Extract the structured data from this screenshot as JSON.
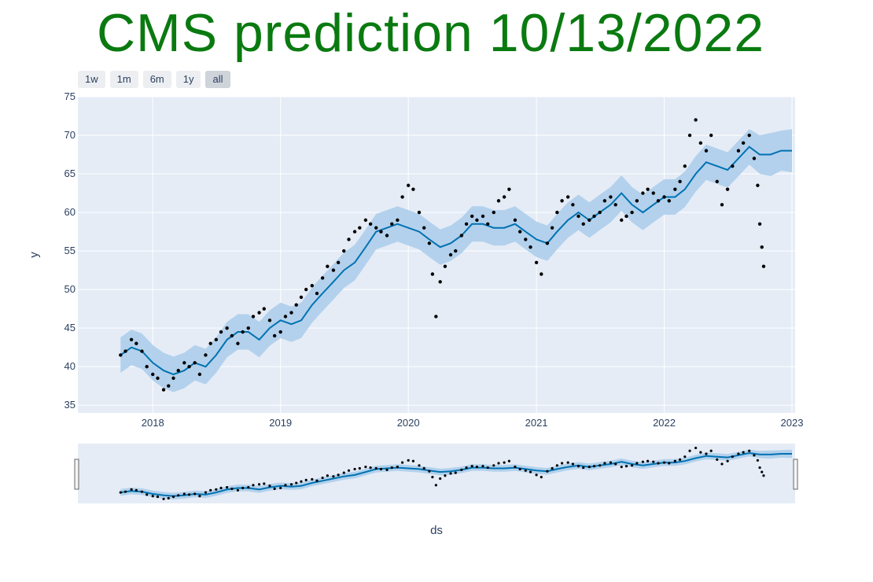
{
  "title": "CMS prediction 10/13/2022",
  "range_buttons": [
    {
      "label": "1w",
      "active": false
    },
    {
      "label": "1m",
      "active": false
    },
    {
      "label": "6m",
      "active": false
    },
    {
      "label": "1y",
      "active": false
    },
    {
      "label": "all",
      "active": true
    }
  ],
  "colors": {
    "title": "#0a7a10",
    "plot_bg": "#e5ecf6",
    "forecast_line": "#0072b2",
    "uncertainty_band": "#b3d1ec",
    "observed_points": "#000000",
    "grid": "#ffffff"
  },
  "chart_data": {
    "type": "line",
    "title": "CMS prediction 10/13/2022",
    "xlabel": "ds",
    "ylabel": "y",
    "xlim": [
      "2017-06-01",
      "2023-01-10"
    ],
    "ylim": [
      34,
      75
    ],
    "x_ticks": [
      "2018",
      "2019",
      "2020",
      "2021",
      "2022",
      "2023"
    ],
    "y_ticks": [
      35,
      40,
      45,
      50,
      55,
      60,
      65,
      70,
      75
    ],
    "grid": true,
    "legend": "none",
    "range_slider": true,
    "series": [
      {
        "kind": "forecast",
        "x": [
          "2017-10-01",
          "2017-11-01",
          "2017-12-01",
          "2018-01-01",
          "2018-02-01",
          "2018-03-01",
          "2018-04-01",
          "2018-05-01",
          "2018-06-01",
          "2018-07-01",
          "2018-08-01",
          "2018-09-01",
          "2018-10-01",
          "2018-11-01",
          "2018-12-01",
          "2019-01-01",
          "2019-02-01",
          "2019-03-01",
          "2019-04-01",
          "2019-05-01",
          "2019-06-01",
          "2019-07-01",
          "2019-08-01",
          "2019-09-01",
          "2019-10-01",
          "2019-11-01",
          "2019-12-01",
          "2020-01-01",
          "2020-02-01",
          "2020-03-01",
          "2020-04-01",
          "2020-05-01",
          "2020-06-01",
          "2020-07-01",
          "2020-08-01",
          "2020-09-01",
          "2020-10-01",
          "2020-11-01",
          "2020-12-01",
          "2021-01-01",
          "2021-02-01",
          "2021-03-01",
          "2021-04-01",
          "2021-05-01",
          "2021-06-01",
          "2021-07-01",
          "2021-08-01",
          "2021-09-01",
          "2021-10-01",
          "2021-11-01",
          "2021-12-01",
          "2022-01-01",
          "2022-02-01",
          "2022-03-01",
          "2022-04-01",
          "2022-05-01",
          "2022-06-01",
          "2022-07-01",
          "2022-08-01",
          "2022-09-01",
          "2022-10-01",
          "2022-11-01",
          "2022-12-01",
          "2023-01-01"
        ],
        "values": [
          41.5,
          42.5,
          42.0,
          40.5,
          39.5,
          39.0,
          39.5,
          40.5,
          40.0,
          41.5,
          43.5,
          44.5,
          44.5,
          43.5,
          45.0,
          46.0,
          45.5,
          46.0,
          48.0,
          49.5,
          51.0,
          52.5,
          53.5,
          55.5,
          57.5,
          58.0,
          58.5,
          58.0,
          57.5,
          56.5,
          55.5,
          56.0,
          57.0,
          58.5,
          58.5,
          58.0,
          58.0,
          58.5,
          57.5,
          56.5,
          56.0,
          57.5,
          59.0,
          60.0,
          59.0,
          60.0,
          61.0,
          62.5,
          61.0,
          60.0,
          61.0,
          62.0,
          62.0,
          63.0,
          65.0,
          66.5,
          66.0,
          65.5,
          67.0,
          68.5,
          67.5,
          67.5,
          68.0,
          68.0
        ],
        "upper": [
          43.8,
          44.8,
          44.3,
          42.8,
          41.8,
          41.3,
          41.8,
          42.8,
          42.3,
          43.8,
          45.8,
          46.8,
          46.8,
          45.8,
          47.3,
          48.3,
          47.8,
          48.3,
          50.3,
          51.8,
          53.3,
          54.8,
          55.8,
          57.8,
          59.8,
          60.3,
          60.8,
          60.3,
          59.8,
          58.8,
          57.8,
          58.3,
          59.3,
          60.8,
          60.8,
          60.3,
          60.3,
          60.8,
          59.8,
          58.8,
          58.3,
          59.8,
          61.3,
          62.3,
          61.3,
          62.3,
          63.3,
          64.8,
          63.3,
          62.3,
          63.3,
          64.3,
          64.3,
          65.3,
          67.3,
          68.8,
          68.3,
          67.8,
          69.3,
          70.8,
          70.0,
          70.3,
          70.6,
          70.8
        ],
        "lower": [
          39.2,
          40.2,
          39.7,
          38.2,
          37.2,
          36.7,
          37.2,
          38.2,
          37.7,
          39.2,
          41.2,
          42.2,
          42.2,
          41.2,
          42.7,
          43.7,
          43.2,
          43.7,
          45.7,
          47.2,
          48.7,
          50.2,
          51.2,
          53.2,
          55.2,
          55.7,
          56.2,
          55.7,
          55.2,
          54.2,
          53.2,
          53.7,
          54.7,
          56.2,
          56.2,
          55.7,
          55.7,
          56.2,
          55.2,
          54.2,
          53.7,
          55.2,
          56.7,
          57.7,
          56.7,
          57.7,
          58.7,
          60.2,
          58.7,
          57.7,
          58.7,
          59.7,
          59.7,
          60.7,
          62.7,
          64.2,
          63.7,
          63.2,
          64.7,
          66.2,
          65.0,
          64.7,
          65.4,
          65.2
        ]
      },
      {
        "kind": "observed",
        "x": [
          "2017-10-01",
          "2017-10-15",
          "2017-11-01",
          "2017-11-15",
          "2017-12-01",
          "2017-12-15",
          "2018-01-01",
          "2018-01-15",
          "2018-02-01",
          "2018-02-15",
          "2018-03-01",
          "2018-03-15",
          "2018-04-01",
          "2018-04-15",
          "2018-05-01",
          "2018-05-15",
          "2018-06-01",
          "2018-06-15",
          "2018-07-01",
          "2018-07-15",
          "2018-08-01",
          "2018-08-15",
          "2018-09-01",
          "2018-09-15",
          "2018-10-01",
          "2018-10-15",
          "2018-11-01",
          "2018-11-15",
          "2018-12-01",
          "2018-12-15",
          "2019-01-01",
          "2019-01-15",
          "2019-02-01",
          "2019-02-15",
          "2019-03-01",
          "2019-03-15",
          "2019-04-01",
          "2019-04-15",
          "2019-05-01",
          "2019-05-15",
          "2019-06-01",
          "2019-06-15",
          "2019-07-01",
          "2019-07-15",
          "2019-08-01",
          "2019-08-15",
          "2019-09-01",
          "2019-09-15",
          "2019-10-01",
          "2019-10-15",
          "2019-11-01",
          "2019-11-15",
          "2019-12-01",
          "2019-12-15",
          "2020-01-01",
          "2020-01-15",
          "2020-02-01",
          "2020-02-15",
          "2020-03-01",
          "2020-03-10",
          "2020-03-20",
          "2020-04-01",
          "2020-04-15",
          "2020-05-01",
          "2020-05-15",
          "2020-06-01",
          "2020-06-15",
          "2020-07-01",
          "2020-07-15",
          "2020-08-01",
          "2020-08-15",
          "2020-09-01",
          "2020-09-15",
          "2020-10-01",
          "2020-10-15",
          "2020-11-01",
          "2020-11-15",
          "2020-12-01",
          "2020-12-15",
          "2021-01-01",
          "2021-01-15",
          "2021-02-01",
          "2021-02-15",
          "2021-03-01",
          "2021-03-15",
          "2021-04-01",
          "2021-04-15",
          "2021-05-01",
          "2021-05-15",
          "2021-06-01",
          "2021-06-15",
          "2021-07-01",
          "2021-07-15",
          "2021-08-01",
          "2021-08-15",
          "2021-09-01",
          "2021-09-15",
          "2021-10-01",
          "2021-10-15",
          "2021-11-01",
          "2021-11-15",
          "2021-12-01",
          "2021-12-15",
          "2022-01-01",
          "2022-01-15",
          "2022-02-01",
          "2022-02-15",
          "2022-03-01",
          "2022-03-15",
          "2022-04-01",
          "2022-04-15",
          "2022-05-01",
          "2022-05-15",
          "2022-06-01",
          "2022-06-15",
          "2022-07-01",
          "2022-07-15",
          "2022-08-01",
          "2022-08-15",
          "2022-09-01",
          "2022-09-15",
          "2022-09-25",
          "2022-10-01",
          "2022-10-07",
          "2022-10-12"
        ],
        "values": [
          41.5,
          42.0,
          43.5,
          43.0,
          42.0,
          40.0,
          39.0,
          38.5,
          37.0,
          37.5,
          38.5,
          39.5,
          40.5,
          40.0,
          40.5,
          39.0,
          41.5,
          43.0,
          43.5,
          44.5,
          45.0,
          44.0,
          43.0,
          44.5,
          45.0,
          46.5,
          47.0,
          47.5,
          46.0,
          44.0,
          44.5,
          46.5,
          47.0,
          48.0,
          49.0,
          50.0,
          50.5,
          49.5,
          51.5,
          53.0,
          52.5,
          53.5,
          55.0,
          56.5,
          57.5,
          58.0,
          59.0,
          58.5,
          58.0,
          57.5,
          57.0,
          58.5,
          59.0,
          62.0,
          63.5,
          63.0,
          60.0,
          58.0,
          56.0,
          52.0,
          46.5,
          51.0,
          53.0,
          54.5,
          55.0,
          57.0,
          58.5,
          59.5,
          59.0,
          59.5,
          58.5,
          60.0,
          61.5,
          62.0,
          63.0,
          59.0,
          57.5,
          56.5,
          55.5,
          53.5,
          52.0,
          56.0,
          58.0,
          60.0,
          61.5,
          62.0,
          61.0,
          59.5,
          58.5,
          59.0,
          59.5,
          60.0,
          61.5,
          62.0,
          61.0,
          59.0,
          59.5,
          60.0,
          61.5,
          62.5,
          63.0,
          62.5,
          61.5,
          62.0,
          61.5,
          63.0,
          64.0,
          66.0,
          70.0,
          72.0,
          69.0,
          68.0,
          70.0,
          64.0,
          61.0,
          63.0,
          66.0,
          68.0,
          69.0,
          70.0,
          67.0,
          63.5,
          58.5,
          55.5,
          53.0
        ]
      }
    ]
  }
}
